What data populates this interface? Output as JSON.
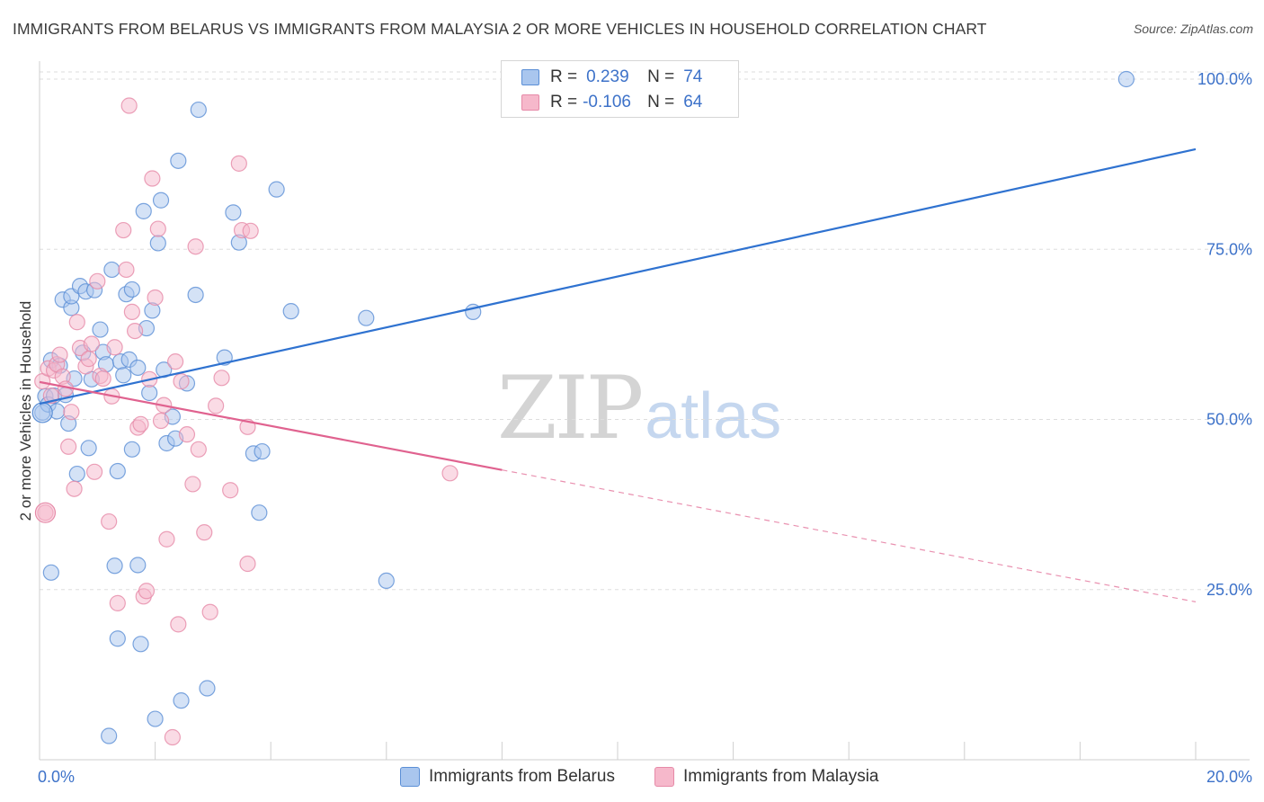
{
  "title": "IMMIGRANTS FROM BELARUS VS IMMIGRANTS FROM MALAYSIA 2 OR MORE VEHICLES IN HOUSEHOLD CORRELATION CHART",
  "source": "Source: ZipAtlas.com",
  "watermark": {
    "zip": "ZIP",
    "atlas": "atlas"
  },
  "colors": {
    "belarus_fill": "#a9c6ee",
    "belarus_stroke": "#5b8fd6",
    "belarus_line": "#2f72d0",
    "malaysia_fill": "#f6b8cb",
    "malaysia_stroke": "#e68aa8",
    "malaysia_line": "#e0628f",
    "tick_text": "#3d72c9",
    "grid": "#dddddd"
  },
  "legend": {
    "rows": [
      {
        "r_label": "R =",
        "r_value": "0.239",
        "n_label": "N =",
        "n_value": "74"
      },
      {
        "r_label": "R =",
        "r_value": "-0.106",
        "n_label": "N =",
        "n_value": "64"
      }
    ]
  },
  "bottom_legend": {
    "belarus": "Immigrants from Belarus",
    "malaysia": "Immigrants from Malaysia"
  },
  "chart_data": {
    "type": "scatter",
    "title": "IMMIGRANTS FROM BELARUS VS IMMIGRANTS FROM MALAYSIA 2 OR MORE VEHICLES IN HOUSEHOLD CORRELATION CHART",
    "xlabel": "",
    "ylabel": "2 or more Vehicles in Household",
    "xlim": [
      0,
      20
    ],
    "ylim": [
      0,
      100
    ],
    "x_ticks": [
      "0.0%",
      "20.0%"
    ],
    "y_ticks": [
      {
        "value": 25,
        "label": "25.0%"
      },
      {
        "value": 50,
        "label": "50.0%"
      },
      {
        "value": 75,
        "label": "75.0%"
      },
      {
        "value": 100,
        "label": "100.0%"
      }
    ],
    "series": [
      {
        "name": "Immigrants from Belarus",
        "r": 0.239,
        "n": 74,
        "trend": {
          "x0": 0,
          "y0": 52.3,
          "x1": 20,
          "y1": 89.7,
          "solid_to": 20
        },
        "points": [
          [
            0.05,
            51.0
          ],
          [
            0.1,
            53.4
          ],
          [
            0.15,
            52.2
          ],
          [
            0.2,
            58.7
          ],
          [
            0.2,
            27.5
          ],
          [
            0.25,
            53.5
          ],
          [
            0.3,
            51.2
          ],
          [
            0.35,
            57.9
          ],
          [
            0.4,
            67.6
          ],
          [
            0.45,
            53.6
          ],
          [
            0.5,
            49.4
          ],
          [
            0.55,
            66.4
          ],
          [
            0.55,
            68.1
          ],
          [
            0.6,
            56.0
          ],
          [
            0.65,
            42.0
          ],
          [
            0.7,
            69.6
          ],
          [
            0.75,
            59.8
          ],
          [
            0.8,
            68.8
          ],
          [
            0.85,
            45.8
          ],
          [
            0.9,
            55.9
          ],
          [
            0.95,
            69.0
          ],
          [
            1.05,
            63.2
          ],
          [
            1.1,
            59.9
          ],
          [
            1.15,
            58.1
          ],
          [
            1.2,
            3.5
          ],
          [
            1.25,
            72.0
          ],
          [
            1.3,
            28.5
          ],
          [
            1.35,
            17.8
          ],
          [
            1.35,
            42.4
          ],
          [
            1.4,
            58.5
          ],
          [
            1.45,
            56.5
          ],
          [
            1.5,
            68.4
          ],
          [
            1.55,
            58.8
          ],
          [
            1.6,
            45.6
          ],
          [
            1.6,
            69.1
          ],
          [
            1.7,
            28.6
          ],
          [
            1.7,
            57.6
          ],
          [
            1.75,
            17.0
          ],
          [
            1.8,
            80.6
          ],
          [
            1.85,
            63.4
          ],
          [
            1.9,
            53.9
          ],
          [
            1.95,
            66.0
          ],
          [
            2.0,
            6.0
          ],
          [
            2.05,
            75.9
          ],
          [
            2.1,
            82.2
          ],
          [
            2.15,
            57.3
          ],
          [
            2.2,
            46.5
          ],
          [
            2.3,
            50.4
          ],
          [
            2.35,
            47.2
          ],
          [
            2.4,
            88.0
          ],
          [
            2.45,
            8.7
          ],
          [
            2.55,
            55.3
          ],
          [
            2.7,
            68.3
          ],
          [
            2.75,
            95.5
          ],
          [
            2.9,
            10.5
          ],
          [
            3.2,
            59.1
          ],
          [
            3.35,
            80.4
          ],
          [
            3.45,
            76.0
          ],
          [
            3.7,
            45.0
          ],
          [
            3.85,
            45.3
          ],
          [
            3.8,
            36.3
          ],
          [
            4.1,
            83.8
          ],
          [
            4.35,
            65.9
          ],
          [
            5.65,
            64.9
          ],
          [
            6.0,
            26.3
          ],
          [
            7.5,
            65.8
          ],
          [
            18.8,
            100.0
          ]
        ]
      },
      {
        "name": "Immigrants from Malaysia",
        "r": -0.106,
        "n": 64,
        "trend": {
          "x0": 0,
          "y0": 55.5,
          "x1": 20,
          "y1": 23.2,
          "solid_to": 8.0
        },
        "points": [
          [
            0.05,
            55.6
          ],
          [
            0.1,
            36.3
          ],
          [
            0.15,
            57.5
          ],
          [
            0.2,
            53.5
          ],
          [
            0.25,
            57.2
          ],
          [
            0.3,
            58.1
          ],
          [
            0.35,
            59.5
          ],
          [
            0.4,
            56.3
          ],
          [
            0.45,
            54.5
          ],
          [
            0.5,
            46.0
          ],
          [
            0.55,
            51.1
          ],
          [
            0.6,
            39.8
          ],
          [
            0.65,
            64.3
          ],
          [
            0.7,
            60.5
          ],
          [
            0.8,
            57.8
          ],
          [
            0.85,
            58.9
          ],
          [
            0.9,
            61.1
          ],
          [
            0.95,
            42.3
          ],
          [
            1.0,
            70.3
          ],
          [
            1.05,
            56.4
          ],
          [
            1.1,
            56.0
          ],
          [
            1.2,
            35.0
          ],
          [
            1.25,
            53.4
          ],
          [
            1.3,
            60.6
          ],
          [
            1.35,
            23.0
          ],
          [
            1.45,
            77.8
          ],
          [
            1.5,
            72.0
          ],
          [
            1.55,
            96.1
          ],
          [
            1.6,
            65.8
          ],
          [
            1.65,
            63.0
          ],
          [
            1.7,
            48.8
          ],
          [
            1.75,
            49.3
          ],
          [
            1.8,
            24.0
          ],
          [
            1.85,
            24.8
          ],
          [
            1.9,
            55.9
          ],
          [
            1.95,
            85.4
          ],
          [
            2.0,
            67.9
          ],
          [
            2.05,
            78.0
          ],
          [
            2.1,
            49.8
          ],
          [
            2.15,
            52.1
          ],
          [
            2.2,
            32.4
          ],
          [
            2.3,
            3.3
          ],
          [
            2.35,
            58.5
          ],
          [
            2.4,
            19.9
          ],
          [
            2.45,
            55.6
          ],
          [
            2.55,
            47.8
          ],
          [
            2.65,
            40.5
          ],
          [
            2.7,
            75.4
          ],
          [
            2.75,
            45.6
          ],
          [
            2.85,
            33.4
          ],
          [
            2.95,
            21.7
          ],
          [
            3.05,
            52.0
          ],
          [
            3.15,
            56.1
          ],
          [
            3.3,
            39.6
          ],
          [
            3.45,
            87.6
          ],
          [
            3.5,
            77.8
          ],
          [
            3.6,
            48.9
          ],
          [
            3.6,
            28.8
          ],
          [
            3.65,
            77.7
          ],
          [
            7.1,
            42.1
          ]
        ]
      }
    ]
  }
}
